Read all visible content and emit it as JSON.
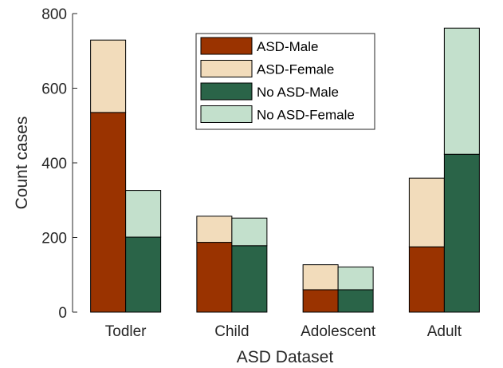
{
  "chart_data": {
    "type": "bar",
    "stacked": true,
    "grouped": true,
    "categories": [
      "Todler",
      "Child",
      "Adolescent",
      "Adult"
    ],
    "groups": [
      {
        "series": [
          {
            "name": "ASD-Male",
            "color": "#9a3300",
            "values": [
              535,
              187,
              60,
              175
            ]
          },
          {
            "name": "ASD-Female",
            "color": "#f2dcbb",
            "values": [
              194,
              70,
              67,
              184
            ]
          }
        ]
      },
      {
        "series": [
          {
            "name": "No ASD-Male",
            "color": "#2a6448",
            "values": [
              201,
              178,
              60,
              423
            ]
          },
          {
            "name": "No ASD-Female",
            "color": "#c3e0cc",
            "values": [
              125,
              74,
              61,
              338
            ]
          }
        ]
      }
    ],
    "legend": [
      "ASD-Male",
      "ASD-Female",
      "No ASD-Male",
      "No ASD-Female"
    ],
    "legend_position": "top-right",
    "xlabel": "ASD Dataset",
    "ylabel": "Count cases",
    "ylim": [
      0,
      800
    ],
    "yticks": [
      0,
      200,
      400,
      600,
      800
    ],
    "grid": false
  }
}
